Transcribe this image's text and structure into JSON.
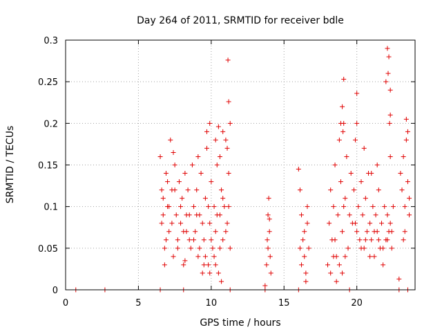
{
  "chart_data": {
    "type": "scatter",
    "title": "Day 264 of 2011, SRMTID for receiver bdle",
    "xlabel": "GPS time / hours",
    "ylabel": "SRMTID / TECUs",
    "xlim": [
      0,
      24
    ],
    "ylim": [
      0,
      0.3
    ],
    "xticks": [
      0,
      5,
      10,
      15,
      20
    ],
    "yticks": [
      0,
      0.05,
      0.1,
      0.15,
      0.2,
      0.25,
      0.3
    ],
    "grid": true,
    "marker": "plus",
    "color": "#e00000",
    "series": [
      {
        "name": "bdle",
        "points": [
          [
            0.7,
            0.0
          ],
          [
            2.7,
            0.0
          ],
          [
            6.5,
            0.0
          ],
          [
            8.1,
            0.0
          ],
          [
            11.3,
            0.0
          ],
          [
            13.7,
            0.0
          ],
          [
            16.0,
            0.0
          ],
          [
            19.5,
            0.0
          ],
          [
            22.9,
            0.0
          ],
          [
            23.5,
            0.0
          ],
          [
            6.5,
            0.16
          ],
          [
            6.6,
            0.12
          ],
          [
            6.7,
            0.09
          ],
          [
            6.8,
            0.05
          ],
          [
            6.9,
            0.14
          ],
          [
            7.0,
            0.1
          ],
          [
            7.1,
            0.07
          ],
          [
            7.2,
            0.18
          ],
          [
            7.3,
            0.12
          ],
          [
            7.4,
            0.04
          ],
          [
            7.5,
            0.15
          ],
          [
            7.6,
            0.09
          ],
          [
            7.7,
            0.06
          ],
          [
            7.8,
            0.13
          ],
          [
            7.9,
            0.08
          ],
          [
            8.0,
            0.11
          ],
          [
            8.1,
            0.03
          ],
          [
            8.2,
            0.14
          ],
          [
            8.3,
            0.07
          ],
          [
            8.4,
            0.12
          ],
          [
            8.5,
            0.09
          ],
          [
            8.6,
            0.05
          ],
          [
            6.6,
            0.08
          ],
          [
            6.7,
            0.11
          ],
          [
            6.9,
            0.06
          ],
          [
            7.1,
            0.1
          ],
          [
            7.3,
            0.08
          ],
          [
            7.5,
            0.12
          ],
          [
            7.7,
            0.05
          ],
          [
            7.9,
            0.1
          ],
          [
            8.1,
            0.07
          ],
          [
            8.3,
            0.09
          ],
          [
            8.5,
            0.06
          ],
          [
            7.4,
            0.165
          ],
          [
            7.0,
            0.13
          ],
          [
            6.8,
            0.03
          ],
          [
            8.2,
            0.035
          ],
          [
            8.7,
            0.15
          ],
          [
            8.8,
            0.1
          ],
          [
            8.9,
            0.07
          ],
          [
            9.0,
            0.12
          ],
          [
            9.1,
            0.04
          ],
          [
            9.2,
            0.09
          ],
          [
            9.3,
            0.14
          ],
          [
            9.4,
            0.02
          ],
          [
            9.5,
            0.06
          ],
          [
            9.6,
            0.11
          ],
          [
            9.7,
            0.17
          ],
          [
            9.8,
            0.03
          ],
          [
            9.9,
            0.08
          ],
          [
            10.0,
            0.13
          ],
          [
            10.1,
            0.05
          ],
          [
            10.2,
            0.1
          ],
          [
            10.3,
            0.07
          ],
          [
            10.4,
            0.15
          ],
          [
            10.5,
            0.02
          ],
          [
            10.6,
            0.09
          ],
          [
            10.7,
            0.12
          ],
          [
            10.8,
            0.06
          ],
          [
            10.9,
            0.1
          ],
          [
            11.0,
            0.18
          ],
          [
            11.1,
            0.08
          ],
          [
            11.2,
            0.14
          ],
          [
            11.3,
            0.05
          ],
          [
            8.8,
            0.06
          ],
          [
            9.0,
            0.09
          ],
          [
            9.2,
            0.05
          ],
          [
            9.4,
            0.08
          ],
          [
            9.6,
            0.04
          ],
          [
            9.8,
            0.1
          ],
          [
            10.0,
            0.06
          ],
          [
            10.2,
            0.04
          ],
          [
            10.4,
            0.09
          ],
          [
            10.6,
            0.05
          ],
          [
            10.8,
            0.11
          ],
          [
            11.0,
            0.07
          ],
          [
            11.2,
            0.1
          ],
          [
            9.5,
            0.03
          ],
          [
            9.9,
            0.02
          ],
          [
            10.3,
            0.03
          ],
          [
            10.7,
            0.01
          ],
          [
            9.1,
            0.16
          ],
          [
            9.7,
            0.19
          ],
          [
            9.9,
            0.2
          ],
          [
            10.3,
            0.18
          ],
          [
            10.6,
            0.16
          ],
          [
            10.8,
            0.19
          ],
          [
            11.1,
            0.17
          ],
          [
            11.3,
            0.2
          ],
          [
            11.2,
            0.226
          ],
          [
            11.15,
            0.276
          ],
          [
            10.5,
            0.196
          ],
          [
            13.7,
            0.005
          ],
          [
            13.8,
            0.03
          ],
          [
            13.85,
            0.06
          ],
          [
            13.9,
            0.09
          ],
          [
            13.95,
            0.11
          ],
          [
            14.0,
            0.07
          ],
          [
            14.05,
            0.04
          ],
          [
            14.1,
            0.02
          ],
          [
            13.9,
            0.05
          ],
          [
            14.0,
            0.085
          ],
          [
            16.0,
            0.145
          ],
          [
            16.1,
            0.12
          ],
          [
            16.2,
            0.09
          ],
          [
            16.3,
            0.06
          ],
          [
            16.4,
            0.04
          ],
          [
            16.5,
            0.02
          ],
          [
            16.6,
            0.08
          ],
          [
            16.7,
            0.05
          ],
          [
            16.2,
            0.03
          ],
          [
            16.4,
            0.07
          ],
          [
            16.6,
            0.1
          ],
          [
            16.1,
            0.05
          ],
          [
            16.5,
            0.01
          ],
          [
            18.0,
            0.03
          ],
          [
            18.1,
            0.08
          ],
          [
            18.2,
            0.12
          ],
          [
            18.3,
            0.06
          ],
          [
            18.4,
            0.1
          ],
          [
            18.5,
            0.15
          ],
          [
            18.6,
            0.04
          ],
          [
            18.7,
            0.09
          ],
          [
            18.8,
            0.18
          ],
          [
            18.9,
            0.13
          ],
          [
            19.0,
            0.07
          ],
          [
            19.1,
            0.2
          ],
          [
            19.2,
            0.11
          ],
          [
            19.3,
            0.16
          ],
          [
            19.4,
            0.05
          ],
          [
            19.5,
            0.09
          ],
          [
            19.6,
            0.14
          ],
          [
            19.7,
            0.08
          ],
          [
            18.2,
            0.02
          ],
          [
            18.4,
            0.04
          ],
          [
            18.6,
            0.01
          ],
          [
            18.8,
            0.03
          ],
          [
            19.0,
            0.02
          ],
          [
            19.2,
            0.04
          ],
          [
            18.5,
            0.06
          ],
          [
            19.1,
            0.1
          ],
          [
            18.9,
            0.2
          ],
          [
            19.0,
            0.22
          ],
          [
            19.1,
            0.253
          ],
          [
            19.05,
            0.19
          ],
          [
            19.8,
            0.12
          ],
          [
            19.9,
            0.08
          ],
          [
            20.0,
            0.236
          ],
          [
            20.1,
            0.1
          ],
          [
            20.2,
            0.06
          ],
          [
            20.3,
            0.13
          ],
          [
            20.4,
            0.09
          ],
          [
            20.5,
            0.05
          ],
          [
            20.6,
            0.11
          ],
          [
            20.7,
            0.07
          ],
          [
            20.8,
            0.14
          ],
          [
            20.9,
            0.08
          ],
          [
            21.0,
            0.06
          ],
          [
            21.1,
            0.1
          ],
          [
            21.2,
            0.04
          ],
          [
            21.3,
            0.09
          ],
          [
            21.4,
            0.07
          ],
          [
            21.5,
            0.12
          ],
          [
            21.6,
            0.05
          ],
          [
            21.7,
            0.08
          ],
          [
            21.8,
            0.03
          ],
          [
            21.9,
            0.1
          ],
          [
            22.0,
            0.06
          ],
          [
            22.1,
            0.09
          ],
          [
            22.2,
            0.07
          ],
          [
            22.3,
            0.08
          ],
          [
            22.4,
            0.05
          ],
          [
            22.5,
            0.1
          ],
          [
            20.0,
            0.07
          ],
          [
            20.3,
            0.05
          ],
          [
            20.6,
            0.06
          ],
          [
            20.9,
            0.04
          ],
          [
            21.2,
            0.07
          ],
          [
            21.5,
            0.06
          ],
          [
            21.8,
            0.05
          ],
          [
            22.1,
            0.06
          ],
          [
            22.4,
            0.07
          ],
          [
            19.9,
            0.18
          ],
          [
            20.0,
            0.2
          ],
          [
            20.5,
            0.17
          ],
          [
            21.0,
            0.14
          ],
          [
            21.4,
            0.15
          ],
          [
            22.3,
            0.16
          ],
          [
            22.1,
            0.29
          ],
          [
            22.2,
            0.28
          ],
          [
            22.15,
            0.26
          ],
          [
            22.3,
            0.24
          ],
          [
            22.25,
            0.2
          ],
          [
            22.0,
            0.25
          ],
          [
            22.3,
            0.21
          ],
          [
            23.0,
            0.14
          ],
          [
            23.1,
            0.12
          ],
          [
            23.2,
            0.16
          ],
          [
            23.3,
            0.1
          ],
          [
            23.4,
            0.18
          ],
          [
            23.5,
            0.13
          ],
          [
            23.6,
            0.09
          ],
          [
            23.4,
            0.205
          ],
          [
            23.5,
            0.19
          ],
          [
            23.3,
            0.07
          ],
          [
            23.6,
            0.11
          ],
          [
            22.9,
            0.013
          ],
          [
            23.2,
            0.06
          ]
        ]
      }
    ]
  }
}
